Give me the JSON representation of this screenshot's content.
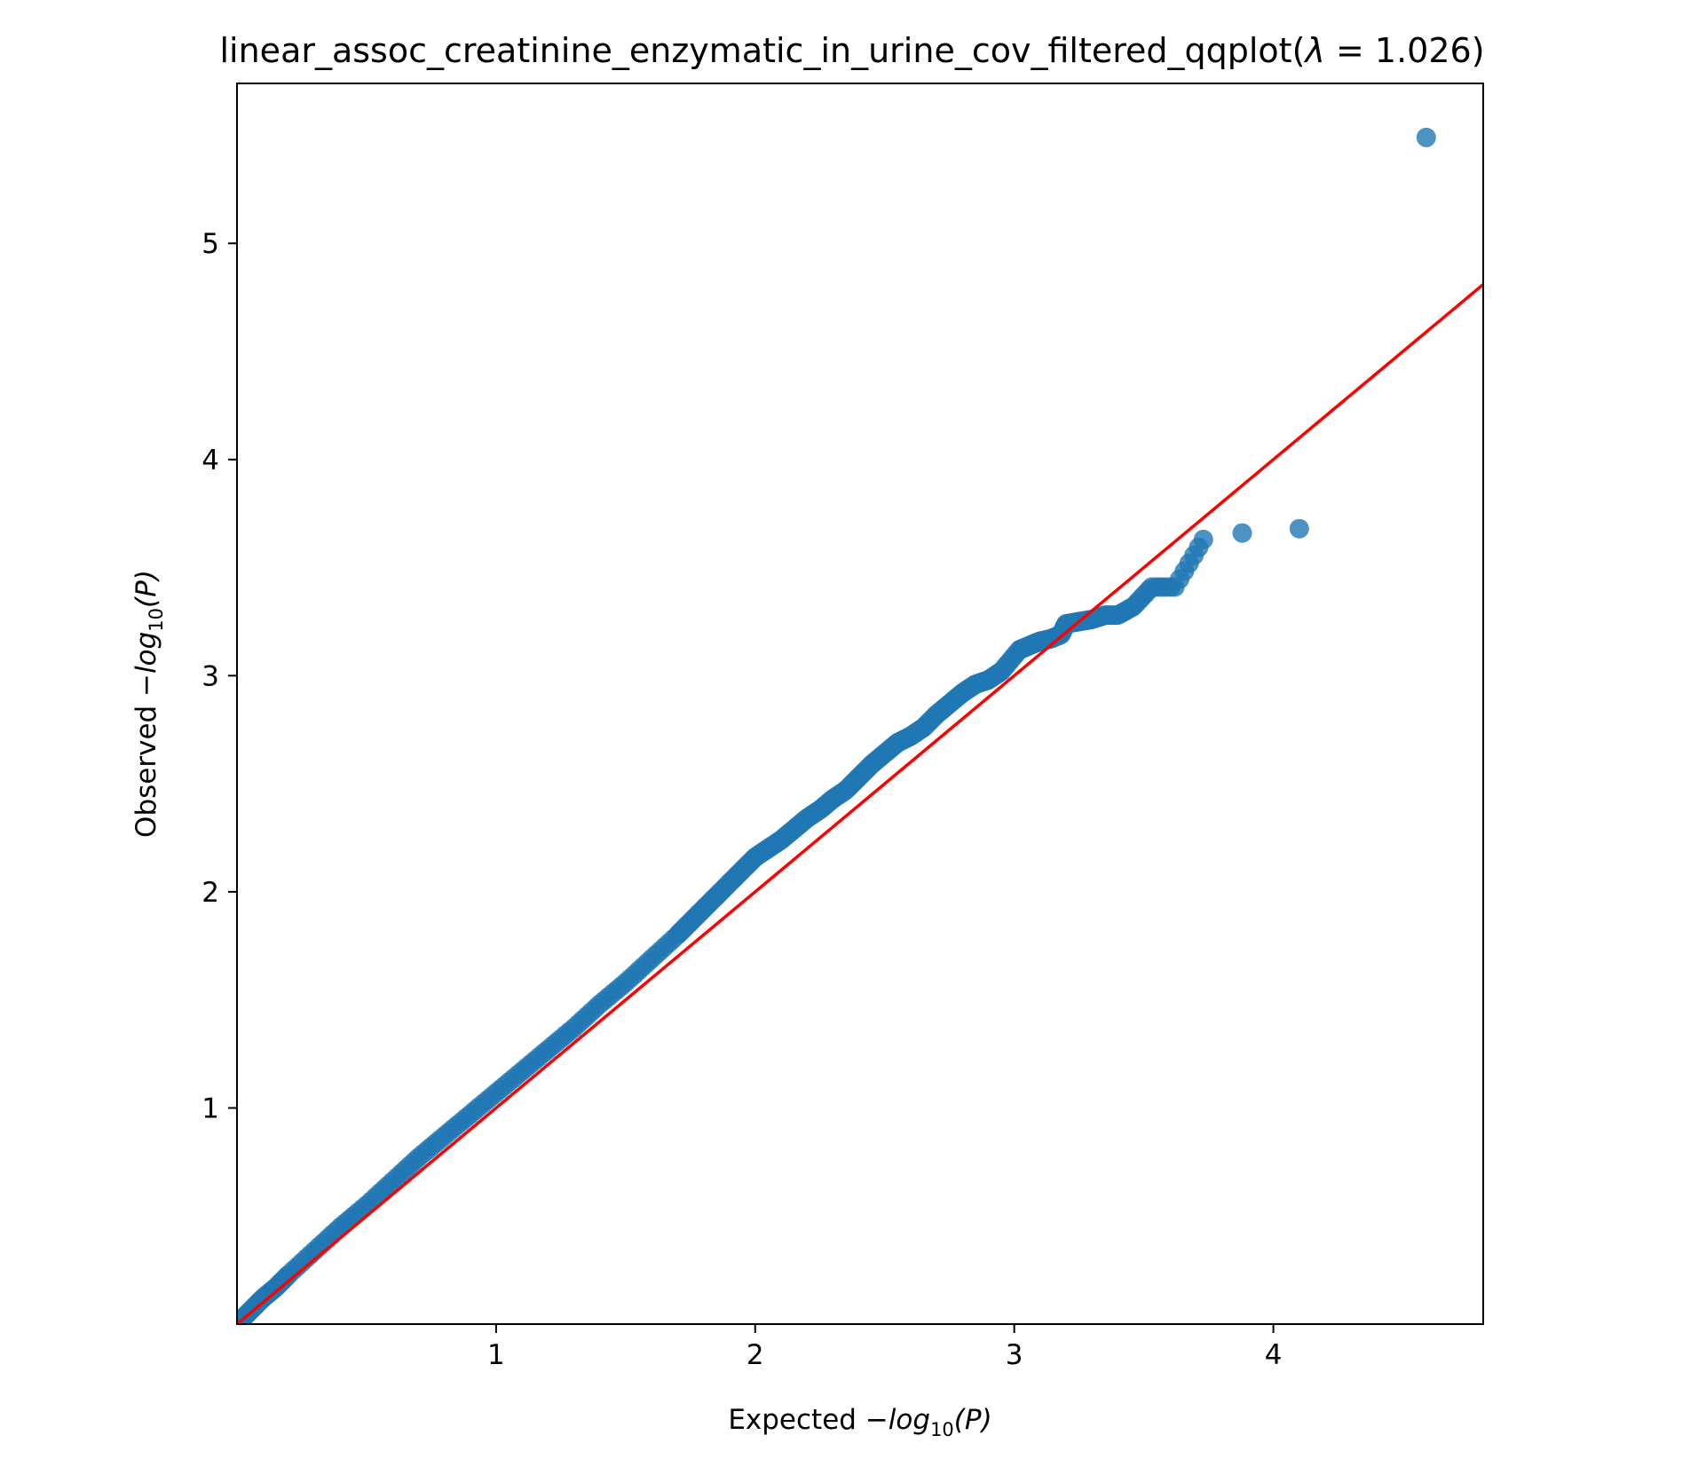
{
  "chart_data": {
    "type": "scatter",
    "title_prefix": "linear_assoc_creatinine_enzymatic_in_urine_cov_filtered_qqplot(",
    "title_lambda_symbol": "λ",
    "title_lambda_value": " = 1.026)",
    "xlabel_prefix": "Expected ",
    "ylabel_prefix": "Observed ",
    "axis_math": {
      "minus": "−",
      "log": "log",
      "sub": "10",
      "arg": "(P)"
    },
    "xlim": [
      0,
      4.81
    ],
    "ylim": [
      0,
      5.74
    ],
    "xticks": [
      1,
      2,
      3,
      4
    ],
    "xtick_labels": [
      "1",
      "2",
      "3",
      "4"
    ],
    "yticks": [
      1,
      2,
      3,
      4,
      5
    ],
    "ytick_labels": [
      "1",
      "2",
      "3",
      "4",
      "5"
    ],
    "grid": false,
    "colors": {
      "points": "#1f77b4",
      "reference_line": "#ff0000",
      "frame": "#000000"
    },
    "reference_line": {
      "x": [
        0,
        4.81
      ],
      "y": [
        0,
        4.81
      ]
    },
    "series": [
      {
        "x": [
          0.0,
          0.05,
          0.1,
          0.15,
          0.2,
          0.3,
          0.4,
          0.5,
          0.6,
          0.7,
          0.8,
          0.9,
          1.0,
          1.1,
          1.2,
          1.3,
          1.4,
          1.5,
          1.6,
          1.7,
          1.75,
          1.8,
          1.85,
          1.9,
          1.95,
          2.0,
          2.05,
          2.1,
          2.15,
          2.2,
          2.25,
          2.3,
          2.35,
          2.4,
          2.45,
          2.5,
          2.55,
          2.6,
          2.65,
          2.7,
          2.75,
          2.8,
          2.85,
          2.9,
          2.95,
          3.02,
          3.06,
          3.1,
          3.14,
          3.18,
          3.2,
          3.25,
          3.3,
          3.35,
          3.4,
          3.46,
          3.53,
          3.62,
          3.73,
          3.88,
          4.1,
          4.59
        ],
        "y": [
          0.0,
          0.06,
          0.12,
          0.17,
          0.23,
          0.34,
          0.45,
          0.55,
          0.66,
          0.77,
          0.87,
          0.97,
          1.07,
          1.17,
          1.27,
          1.37,
          1.48,
          1.58,
          1.69,
          1.8,
          1.86,
          1.92,
          1.98,
          2.04,
          2.1,
          2.16,
          2.2,
          2.24,
          2.29,
          2.34,
          2.38,
          2.43,
          2.47,
          2.53,
          2.59,
          2.64,
          2.69,
          2.72,
          2.76,
          2.82,
          2.87,
          2.92,
          2.96,
          2.98,
          3.02,
          3.12,
          3.14,
          3.16,
          3.17,
          3.19,
          3.24,
          3.25,
          3.26,
          3.28,
          3.28,
          3.32,
          3.41,
          3.41,
          3.63,
          3.66,
          3.68,
          5.49
        ]
      }
    ]
  }
}
